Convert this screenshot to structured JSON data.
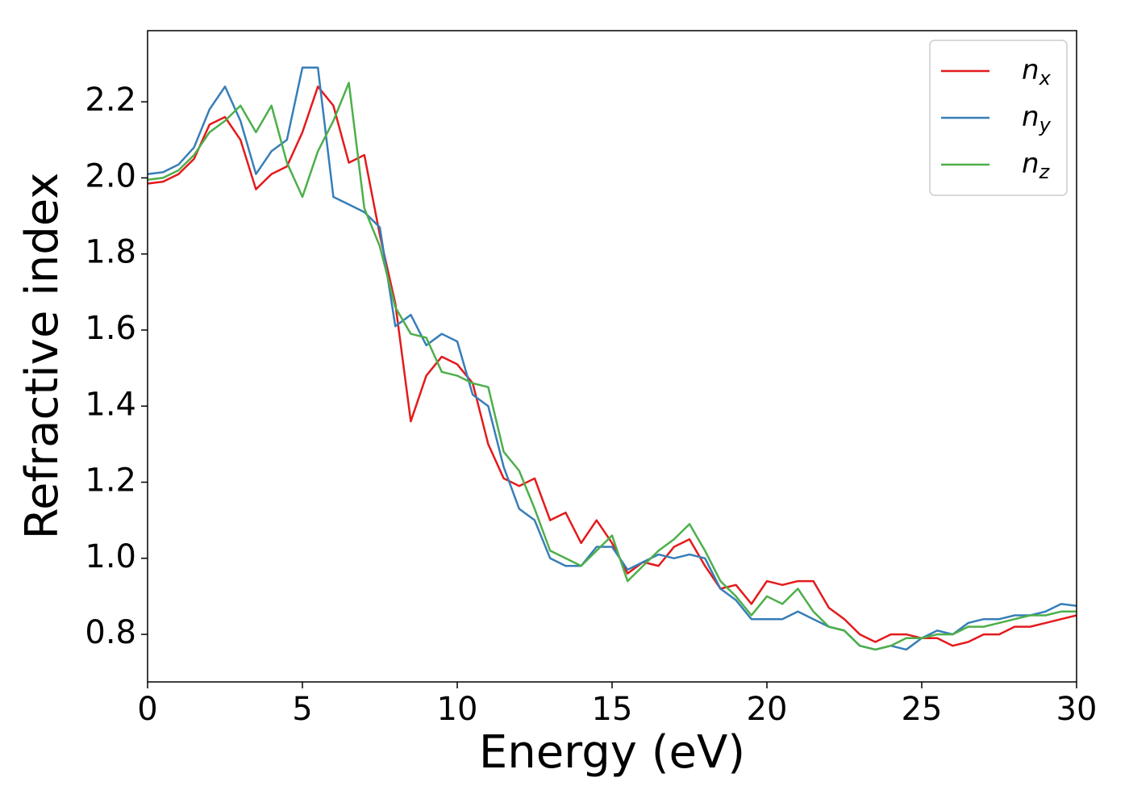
{
  "chart_data": {
    "type": "line",
    "xlabel": "Energy (eV)",
    "ylabel": "Refractive index",
    "x": [
      0,
      0.5,
      1,
      1.5,
      2,
      2.5,
      3,
      3.5,
      4,
      4.5,
      5,
      5.5,
      6,
      6.5,
      7,
      7.5,
      8,
      8.5,
      9,
      9.5,
      10,
      10.5,
      11,
      11.5,
      12,
      12.5,
      13,
      13.5,
      14,
      14.5,
      15,
      15.5,
      16,
      16.5,
      17,
      17.5,
      18,
      18.5,
      19,
      19.5,
      20,
      20.5,
      21,
      21.5,
      22,
      22.5,
      23,
      23.5,
      24,
      24.5,
      25,
      25.5,
      26,
      26.5,
      27,
      27.5,
      28,
      28.5,
      29,
      29.5,
      30
    ],
    "series": [
      {
        "name": "nx",
        "color": "#e41a1c",
        "values": [
          1.985,
          1.99,
          2.01,
          2.05,
          2.14,
          2.16,
          2.1,
          1.97,
          2.01,
          2.03,
          2.12,
          2.24,
          2.19,
          2.04,
          2.06,
          1.85,
          1.67,
          1.36,
          1.48,
          1.53,
          1.51,
          1.46,
          1.3,
          1.21,
          1.19,
          1.21,
          1.1,
          1.12,
          1.04,
          1.1,
          1.04,
          0.96,
          0.99,
          0.98,
          1.03,
          1.05,
          0.98,
          0.92,
          0.93,
          0.88,
          0.94,
          0.93,
          0.94,
          0.94,
          0.87,
          0.84,
          0.8,
          0.78,
          0.8,
          0.8,
          0.79,
          0.79,
          0.77,
          0.78,
          0.8,
          0.8,
          0.82,
          0.82,
          0.83,
          0.84,
          0.85
        ]
      },
      {
        "name": "ny",
        "color": "#377eb8",
        "values": [
          2.01,
          2.015,
          2.035,
          2.08,
          2.18,
          2.24,
          2.15,
          2.01,
          2.07,
          2.1,
          2.29,
          2.29,
          1.95,
          1.93,
          1.91,
          1.87,
          1.61,
          1.64,
          1.56,
          1.59,
          1.57,
          1.43,
          1.4,
          1.24,
          1.13,
          1.1,
          1.0,
          0.98,
          0.98,
          1.03,
          1.03,
          0.97,
          0.99,
          1.01,
          1.0,
          1.01,
          1.0,
          0.92,
          0.89,
          0.84,
          0.84,
          0.84,
          0.86,
          0.84,
          0.82,
          0.81,
          0.77,
          0.76,
          0.77,
          0.76,
          0.79,
          0.81,
          0.8,
          0.83,
          0.84,
          0.84,
          0.85,
          0.85,
          0.86,
          0.88,
          0.875
        ]
      },
      {
        "name": "nz",
        "color": "#4daf4a",
        "values": [
          1.995,
          2.0,
          2.02,
          2.06,
          2.12,
          2.15,
          2.19,
          2.12,
          2.19,
          2.04,
          1.95,
          2.07,
          2.15,
          2.25,
          1.92,
          1.82,
          1.66,
          1.59,
          1.58,
          1.49,
          1.48,
          1.46,
          1.45,
          1.28,
          1.23,
          1.13,
          1.02,
          1.0,
          0.98,
          1.02,
          1.06,
          0.94,
          0.98,
          1.02,
          1.05,
          1.09,
          1.02,
          0.94,
          0.9,
          0.85,
          0.9,
          0.88,
          0.92,
          0.86,
          0.82,
          0.81,
          0.77,
          0.76,
          0.77,
          0.79,
          0.79,
          0.8,
          0.8,
          0.82,
          0.82,
          0.83,
          0.84,
          0.85,
          0.85,
          0.86,
          0.86
        ]
      }
    ],
    "xlim": [
      0,
      30
    ],
    "xticks": [
      0,
      5,
      10,
      15,
      20,
      25,
      30
    ],
    "ylim": [
      0.675,
      2.387
    ],
    "yticks": [
      0.8,
      {
        "value": 1,
        "label": "1.0"
      },
      1.2,
      1.4,
      1.6,
      1.8,
      {
        "value": 2,
        "label": "2.0"
      },
      2.2
    ],
    "legend": "upper right"
  }
}
